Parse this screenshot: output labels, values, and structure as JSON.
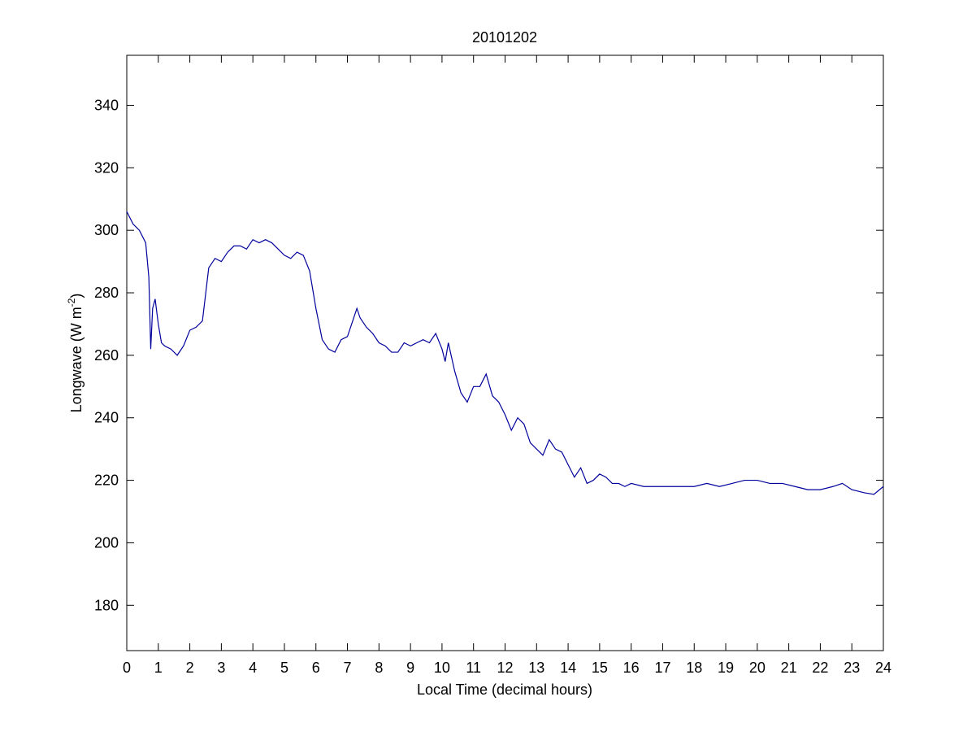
{
  "chart_data": {
    "type": "line",
    "title": "20101202",
    "x_label": "Local Time (decimal hours)",
    "y_label": "Longwave (W m",
    "y_label_sup": "-2",
    "y_label_end": ")",
    "xlim": [
      0,
      24
    ],
    "xticks": [
      0,
      1,
      2,
      3,
      4,
      5,
      6,
      7,
      8,
      9,
      10,
      11,
      12,
      13,
      14,
      15,
      16,
      17,
      18,
      19,
      20,
      21,
      22,
      23,
      24
    ],
    "ylim": [
      165.5,
      356
    ],
    "yticks": [
      180,
      200,
      220,
      240,
      260,
      280,
      300,
      320,
      340
    ],
    "series": [
      {
        "color": "#00009c",
        "x": [
          0,
          0.2,
          0.4,
          0.6,
          0.7,
          0.76,
          0.82,
          0.9,
          1.0,
          1.1,
          1.2,
          1.4,
          1.6,
          1.8,
          2.0,
          2.2,
          2.4,
          2.6,
          2.8,
          3.0,
          3.2,
          3.4,
          3.6,
          3.8,
          4.0,
          4.2,
          4.4,
          4.6,
          4.8,
          5.0,
          5.2,
          5.4,
          5.6,
          5.8,
          6.0,
          6.2,
          6.4,
          6.6,
          6.8,
          7.0,
          7.2,
          7.3,
          7.4,
          7.6,
          7.8,
          8.0,
          8.2,
          8.4,
          8.6,
          8.8,
          9.0,
          9.2,
          9.4,
          9.6,
          9.8,
          10.0,
          10.1,
          10.2,
          10.4,
          10.6,
          10.8,
          11.0,
          11.2,
          11.4,
          11.6,
          11.8,
          12.0,
          12.2,
          12.4,
          12.6,
          12.8,
          13.0,
          13.2,
          13.4,
          13.6,
          13.8,
          14.0,
          14.2,
          14.4,
          14.6,
          14.8,
          15.0,
          15.2,
          15.4,
          15.6,
          15.8,
          16.0,
          16.4,
          16.8,
          17.2,
          17.6,
          18.0,
          18.4,
          18.8,
          19.2,
          19.6,
          20.0,
          20.4,
          20.8,
          21.2,
          21.6,
          22.0,
          22.4,
          22.7,
          23.0,
          23.4,
          23.7,
          24.0
        ],
        "values": [
          306,
          302,
          300,
          296,
          285,
          262,
          275,
          278,
          270,
          264,
          263,
          262,
          260,
          263,
          268,
          269,
          271,
          288,
          291,
          290,
          293,
          295,
          295,
          294,
          297,
          296,
          297,
          296,
          294,
          292,
          291,
          293,
          292,
          287,
          275,
          265,
          262,
          261,
          265,
          266,
          272,
          275,
          272,
          269,
          267,
          264,
          263,
          261,
          261,
          264,
          263,
          264,
          265,
          264,
          267,
          262,
          258,
          264,
          255,
          248,
          245,
          250,
          250,
          254,
          247,
          245,
          241,
          236,
          240,
          238,
          232,
          230,
          228,
          233,
          230,
          229,
          225,
          221,
          224,
          219,
          220,
          222,
          221,
          219,
          219,
          218,
          219,
          218,
          218,
          218,
          218,
          218,
          219,
          218,
          219,
          220,
          220,
          219,
          219,
          218,
          217,
          217,
          218,
          219,
          217,
          216,
          215.5,
          218
        ]
      }
    ]
  }
}
